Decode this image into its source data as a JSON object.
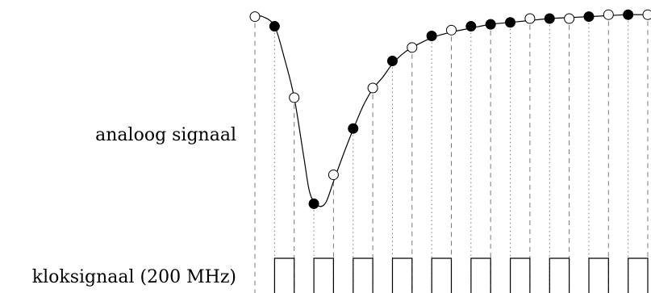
{
  "labels": {
    "analog": "analoog signaal",
    "clock": "kloksignaal (200 MHz)"
  },
  "samples": [
    {
      "t": 0,
      "v": 0.985,
      "filled": false
    },
    {
      "t": 1,
      "v": 0.935,
      "filled": true
    },
    {
      "t": 2,
      "v": 0.565,
      "filled": false
    },
    {
      "t": 3,
      "v": 0.015,
      "filled": true
    },
    {
      "t": 4,
      "v": 0.165,
      "filled": false
    },
    {
      "t": 5,
      "v": 0.405,
      "filled": true
    },
    {
      "t": 6,
      "v": 0.615,
      "filled": false
    },
    {
      "t": 7,
      "v": 0.755,
      "filled": true
    },
    {
      "t": 8,
      "v": 0.825,
      "filled": false
    },
    {
      "t": 9,
      "v": 0.885,
      "filled": true
    },
    {
      "t": 10,
      "v": 0.915,
      "filled": false
    },
    {
      "t": 11,
      "v": 0.935,
      "filled": true
    },
    {
      "t": 12,
      "v": 0.945,
      "filled": true
    },
    {
      "t": 13,
      "v": 0.955,
      "filled": true
    },
    {
      "t": 14,
      "v": 0.975,
      "filled": false
    },
    {
      "t": 15,
      "v": 0.975,
      "filled": true
    },
    {
      "t": 16,
      "v": 0.975,
      "filled": false
    },
    {
      "t": 17,
      "v": 0.985,
      "filled": true
    },
    {
      "t": 18,
      "v": 0.995,
      "filled": false
    },
    {
      "t": 19,
      "v": 0.995,
      "filled": true
    },
    {
      "t": 20,
      "v": 0.995,
      "filled": false
    }
  ],
  "curve": [
    [
      0.0,
      0.985
    ],
    [
      0.4,
      0.985
    ],
    [
      1.0,
      0.935
    ],
    [
      1.5,
      0.77
    ],
    [
      2.0,
      0.565
    ],
    [
      2.5,
      0.25
    ],
    [
      2.8,
      0.07
    ],
    [
      3.2,
      0.005
    ],
    [
      3.6,
      0.02
    ],
    [
      4.0,
      0.13
    ],
    [
      4.5,
      0.27
    ],
    [
      5.0,
      0.4
    ],
    [
      5.5,
      0.52
    ],
    [
      6.0,
      0.61
    ],
    [
      6.5,
      0.67
    ],
    [
      7.0,
      0.74
    ],
    [
      7.5,
      0.79
    ],
    [
      8.0,
      0.825
    ],
    [
      9.0,
      0.875
    ],
    [
      10.0,
      0.905
    ],
    [
      11.0,
      0.925
    ],
    [
      12.0,
      0.945
    ],
    [
      13.0,
      0.955
    ],
    [
      14.0,
      0.965
    ],
    [
      15.0,
      0.975
    ],
    [
      16.0,
      0.98
    ],
    [
      17.0,
      0.985
    ],
    [
      18.0,
      0.99
    ],
    [
      19.0,
      0.995
    ],
    [
      20.0,
      0.995
    ]
  ],
  "clock_pulses": 10,
  "colors": {
    "ink": "#000000",
    "guide": "#7a7a7a"
  }
}
